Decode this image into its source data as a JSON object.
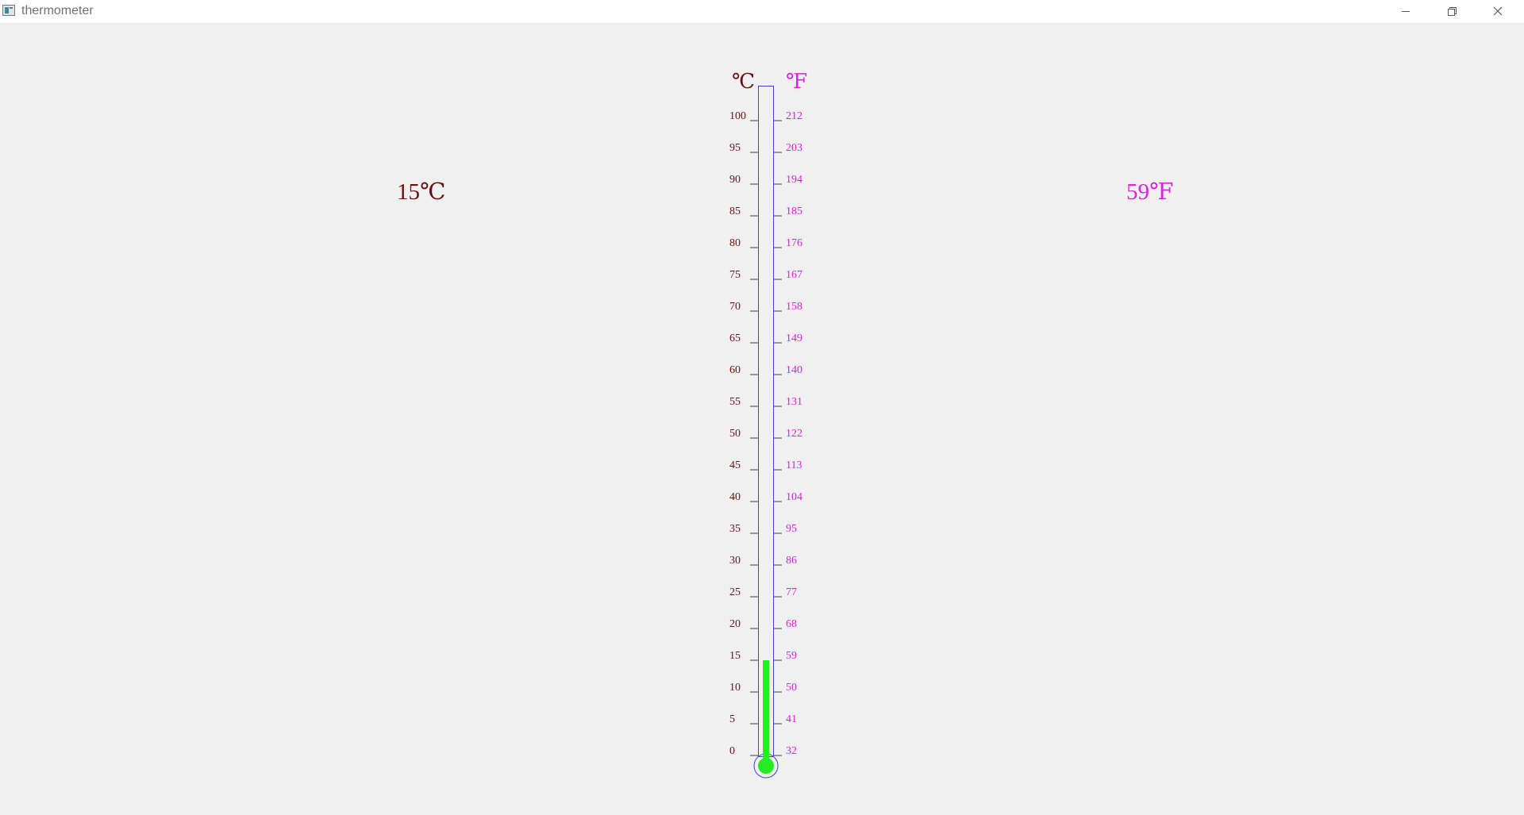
{
  "window": {
    "title": "thermometer",
    "controls": {
      "minimize_icon": "minimize-icon",
      "maximize_icon": "restore-icon",
      "close_icon": "close-icon"
    }
  },
  "readouts": {
    "celsius": "15℃",
    "fahrenheit": "59℉"
  },
  "thermometer": {
    "celsius_unit": "℃",
    "fahrenheit_unit": "℉",
    "current_celsius": 15,
    "scale_min": 0,
    "scale_max": 100,
    "celsius_ticks": [
      "0",
      "5",
      "10",
      "15",
      "20",
      "25",
      "30",
      "35",
      "40",
      "45",
      "50",
      "55",
      "60",
      "65",
      "70",
      "75",
      "80",
      "85",
      "90",
      "95",
      "100"
    ],
    "fahrenheit_ticks": [
      "32",
      "41",
      "50",
      "59",
      "68",
      "77",
      "86",
      "95",
      "104",
      "113",
      "122",
      "131",
      "140",
      "149",
      "158",
      "167",
      "176",
      "185",
      "194",
      "203",
      "212"
    ],
    "colors": {
      "celsius": "#6b0f0f",
      "fahrenheit": "#e020e0",
      "tube": "#4040d0",
      "mercury": "#22ee22"
    }
  }
}
